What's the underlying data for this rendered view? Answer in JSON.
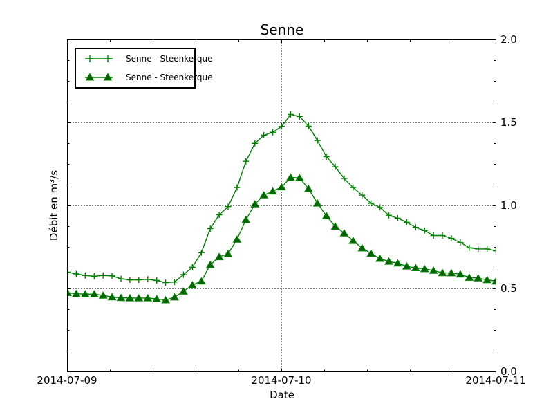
{
  "title": "Senne",
  "axes": {
    "xlabel": "Date",
    "ylabel": "Débit en m³/s",
    "x_tick_labels": [
      "2014-07-09",
      "2014-07-10",
      "2014-07-11"
    ],
    "y_tick_labels": [
      "2.0",
      "1.5",
      "1.0",
      "0.5",
      "0.0"
    ]
  },
  "legend": {
    "entries": [
      {
        "label": "Senne - Steenkerque",
        "marker": "plus"
      },
      {
        "label": "Senne - Steenkerque",
        "marker": "triangle"
      }
    ]
  },
  "colors": {
    "line_green": "#008000",
    "triangle_fill": "#006400",
    "grid": "#000000"
  },
  "chart_data": {
    "type": "line",
    "title": "Senne",
    "xlabel": "Date",
    "ylabel": "Débit en m³/s",
    "x_start": "2014-07-09 00:00",
    "x_end": "2014-07-11 00:00",
    "x_step_hours": 1,
    "x_tick_labels": [
      "2014-07-09",
      "2014-07-10",
      "2014-07-11"
    ],
    "ylim": [
      0.0,
      2.0
    ],
    "y_major_ticks": [
      0.0,
      0.5,
      1.0,
      1.5,
      2.0
    ],
    "grid": "dotted major gridlines",
    "legend_position": "upper left",
    "series": [
      {
        "name": "Senne - Steenkerque",
        "marker": "plus",
        "color": "#008000",
        "values": [
          0.6,
          0.59,
          0.58,
          0.576,
          0.58,
          0.578,
          0.56,
          0.554,
          0.554,
          0.557,
          0.55,
          0.537,
          0.541,
          0.585,
          0.63,
          0.717,
          0.863,
          0.946,
          0.995,
          1.11,
          1.268,
          1.376,
          1.425,
          1.443,
          1.478,
          1.55,
          1.538,
          1.48,
          1.393,
          1.296,
          1.235,
          1.164,
          1.11,
          1.064,
          1.015,
          0.99,
          0.943,
          0.925,
          0.901,
          0.87,
          0.851,
          0.821,
          0.821,
          0.804,
          0.779,
          0.747,
          0.74,
          0.74,
          0.729
        ]
      },
      {
        "name": "Senne - Steenkerque",
        "marker": "triangle",
        "color": "#008000",
        "marker_fill": "#006400",
        "values": [
          0.476,
          0.47,
          0.468,
          0.468,
          0.46,
          0.45,
          0.446,
          0.444,
          0.444,
          0.444,
          0.439,
          0.432,
          0.449,
          0.485,
          0.522,
          0.546,
          0.645,
          0.692,
          0.711,
          0.798,
          0.916,
          1.01,
          1.064,
          1.088,
          1.113,
          1.171,
          1.168,
          1.103,
          1.015,
          0.939,
          0.876,
          0.835,
          0.79,
          0.745,
          0.713,
          0.682,
          0.665,
          0.654,
          0.636,
          0.626,
          0.62,
          0.61,
          0.596,
          0.595,
          0.588,
          0.568,
          0.564,
          0.554,
          0.546
        ]
      }
    ]
  }
}
